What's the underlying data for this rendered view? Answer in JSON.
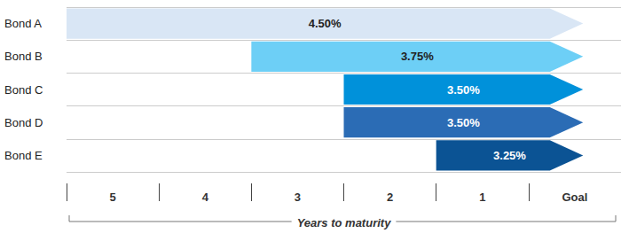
{
  "chart_data": {
    "type": "bar",
    "orientation": "horizontal",
    "categories": [
      "Bond A",
      "Bond B",
      "Bond C",
      "Bond D",
      "Bond E"
    ],
    "values": [
      4.5,
      3.75,
      3.5,
      3.5,
      3.25
    ],
    "value_labels": [
      "4.50%",
      "3.75%",
      "3.50%",
      "3.50%",
      "3.25%"
    ],
    "data_labels": true,
    "start": [
      "5",
      "3",
      "2",
      "2",
      "1"
    ],
    "end": [
      "Goal",
      "Goal",
      "Goal",
      "Goal",
      "Goal"
    ],
    "x_categories": [
      "5",
      "4",
      "3",
      "2",
      "1",
      "Goal"
    ],
    "xlabel": "Years to maturity",
    "colors": [
      "#d9e6f5",
      "#6dcff6",
      "#0091da",
      "#2b6cb5",
      "#0b5394"
    ],
    "grid": true
  }
}
